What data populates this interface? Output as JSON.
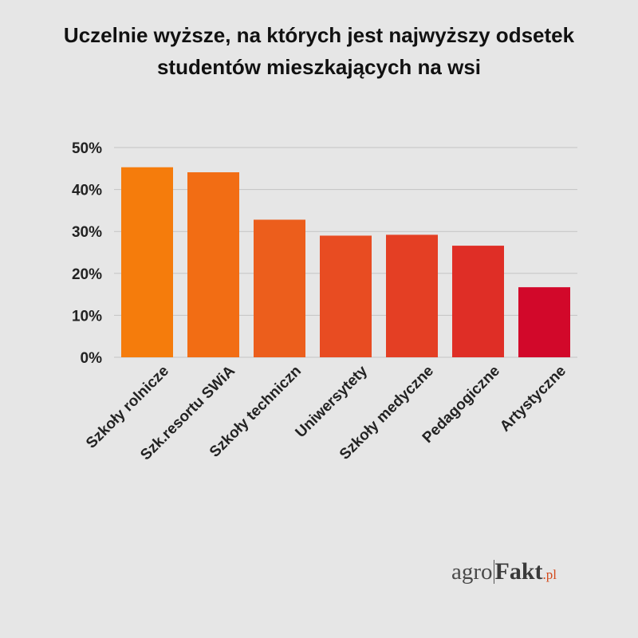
{
  "title_line1": "Uczelnie wyższe, na których jest najwyższy odsetek",
  "title_line2": "studentów mieszkających na wsi",
  "logo": {
    "part_a": "agro",
    "part_b": "Fakt",
    "part_c": ".pl"
  },
  "chart_data": {
    "type": "bar",
    "title": "Uczelnie wyższe, na których jest najwyższy odsetek studentów mieszkających na wsi",
    "categories": [
      "Szkoły rolnicze",
      "Szk.resortu SWiA",
      "Szkoły techniczn",
      "Uniwersytety",
      "Szkoły medyczne",
      "Pedagogiczne",
      "Artystyczne"
    ],
    "values": [
      45.3,
      44.1,
      32.8,
      29.0,
      29.2,
      26.6,
      16.7
    ],
    "unit": "%",
    "ylim": [
      0,
      50
    ],
    "yticks": [
      "0%",
      "10%",
      "20%",
      "30%",
      "40%",
      "50%"
    ],
    "grid": true,
    "bar_colors": [
      "#f57c0c",
      "#f26d14",
      "#ec5e1c",
      "#e84c22",
      "#e43f24",
      "#df2e26",
      "#d2082a"
    ]
  }
}
